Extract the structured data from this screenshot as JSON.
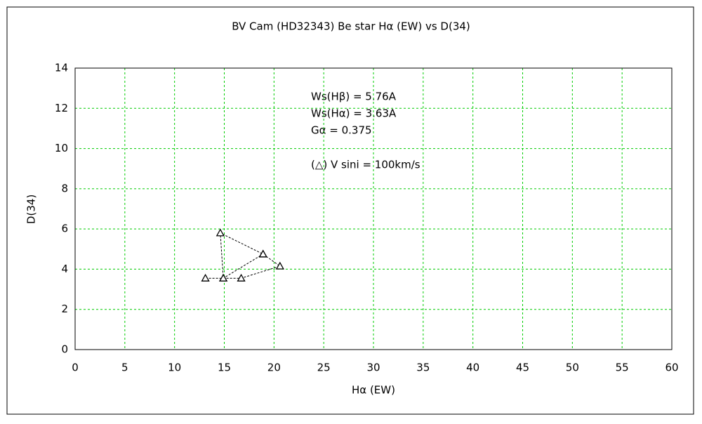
{
  "chart_data": {
    "type": "scatter",
    "title": "BV Cam (HD32343)    Be star    Hα (EW) vs D(34)",
    "x_label": "Hα (EW)",
    "y_label": "D(34)",
    "annotations": [
      "Ws(Hβ) = 5.76A",
      "Ws(Hα) = 3.63A",
      "Gα = 0.375",
      "(△) V sini = 100km/s"
    ],
    "series": [
      {
        "color": "#000000",
        "x": [
          13.1,
          14.9,
          16.7,
          20.6,
          18.9,
          14.6,
          14.9,
          18.9
        ],
        "values": [
          3.55,
          3.55,
          3.55,
          4.15,
          4.75,
          5.8,
          3.55,
          4.75
        ]
      }
    ],
    "xlim": [
      0,
      60
    ],
    "xticks": [
      0,
      5,
      10,
      15,
      20,
      25,
      30,
      35,
      40,
      45,
      50,
      55,
      60
    ],
    "ylim": [
      0,
      14
    ],
    "yticks": [
      0,
      2,
      4,
      6,
      8,
      10,
      12,
      14
    ],
    "grid": true,
    "grid_color": "#00cc00"
  }
}
